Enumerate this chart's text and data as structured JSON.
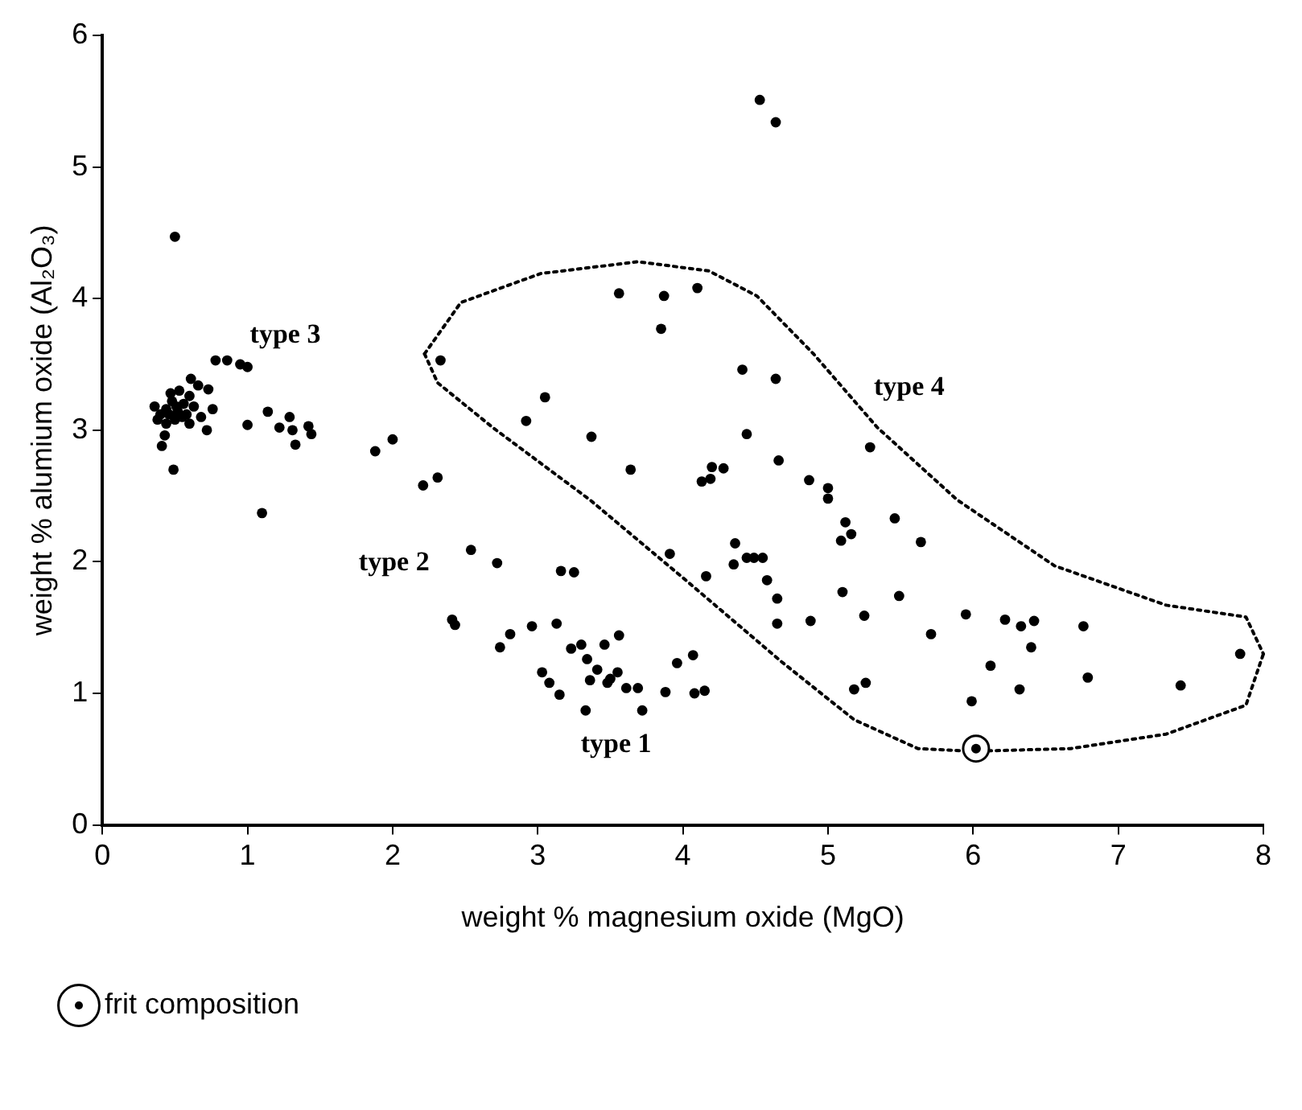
{
  "chart_data": {
    "type": "scatter",
    "xlabel": "weight % magnesium oxide (MgO)",
    "ylabel": "weight % alumium oxide (Al₂O₃)",
    "xlim": [
      0,
      8
    ],
    "xticks": [
      0,
      1,
      2,
      3,
      4,
      5,
      6,
      7,
      8
    ],
    "ylim": [
      0,
      6
    ],
    "yticks": [
      0,
      1,
      2,
      3,
      4,
      5,
      6
    ],
    "legend": "bottom left",
    "marker": "circle",
    "annotations": [
      "type 3",
      "type 2",
      "type 1",
      "type 4"
    ],
    "series": [
      {
        "color": "#000000",
        "x": [
          0.5,
          0.36,
          0.4,
          0.44,
          0.48,
          0.52,
          0.56,
          0.6,
          0.66,
          0.61,
          0.73,
          0.76,
          0.6,
          0.72,
          0.68,
          0.41,
          0.43,
          0.44,
          0.5,
          0.55,
          0.47,
          0.53,
          0.58,
          0.38,
          0.46,
          0.51,
          0.63,
          0.49,
          0.78,
          0.86,
          0.95,
          1.0,
          1.0,
          1.14,
          1.29,
          1.22,
          1.31,
          1.42,
          1.44,
          1.33,
          1.1,
          1.88,
          2.0,
          2.21,
          2.31,
          2.33,
          3.56,
          3.87,
          4.1,
          3.85,
          3.05,
          2.92,
          3.37,
          3.64,
          2.54,
          2.72,
          3.16,
          3.25,
          3.91,
          4.16,
          2.41,
          2.43,
          2.81,
          2.74,
          2.96,
          3.13,
          3.3,
          3.23,
          3.46,
          3.56,
          3.34,
          3.03,
          3.08,
          3.15,
          3.41,
          3.36,
          3.5,
          3.55,
          3.48,
          3.61,
          3.69,
          3.33,
          3.72,
          3.88,
          3.96,
          4.07,
          4.08,
          4.15,
          4.53,
          4.64,
          4.41,
          4.64,
          4.44,
          5.29,
          4.66,
          4.13,
          4.19,
          4.2,
          4.28,
          4.87,
          5.0,
          5.0,
          5.46,
          5.12,
          5.16,
          5.09,
          5.64,
          4.36,
          4.35,
          4.44,
          4.49,
          4.55,
          4.58,
          4.65,
          4.65,
          4.88,
          5.1,
          5.25,
          5.49,
          5.71,
          5.95,
          6.22,
          6.33,
          6.42,
          6.4,
          6.76,
          6.12,
          5.18,
          5.26,
          5.99,
          6.32,
          6.79,
          7.43,
          7.84
        ],
        "values": [
          4.47,
          3.18,
          3.12,
          3.16,
          3.22,
          3.14,
          3.2,
          3.26,
          3.34,
          3.39,
          3.31,
          3.16,
          3.05,
          3.0,
          3.1,
          2.88,
          2.96,
          3.05,
          3.08,
          3.1,
          3.28,
          3.3,
          3.12,
          3.08,
          3.12,
          3.18,
          3.18,
          2.7,
          3.53,
          3.53,
          3.5,
          3.48,
          3.04,
          3.14,
          3.1,
          3.02,
          3.0,
          3.03,
          2.97,
          2.89,
          2.37,
          2.84,
          2.93,
          2.58,
          2.64,
          3.53,
          4.04,
          4.02,
          4.08,
          3.77,
          3.25,
          3.07,
          2.95,
          2.7,
          2.09,
          1.99,
          1.93,
          1.92,
          2.06,
          1.89,
          1.56,
          1.52,
          1.45,
          1.35,
          1.51,
          1.53,
          1.37,
          1.34,
          1.37,
          1.44,
          1.26,
          1.16,
          1.08,
          0.99,
          1.18,
          1.1,
          1.11,
          1.16,
          1.08,
          1.04,
          1.04,
          0.87,
          0.87,
          1.01,
          1.23,
          1.29,
          1.0,
          1.02,
          5.51,
          5.34,
          3.46,
          3.39,
          2.97,
          2.87,
          2.77,
          2.61,
          2.63,
          2.72,
          2.71,
          2.62,
          2.56,
          2.48,
          2.33,
          2.3,
          2.21,
          2.16,
          2.15,
          2.14,
          1.98,
          2.03,
          2.03,
          2.03,
          1.86,
          1.72,
          1.53,
          1.55,
          1.77,
          1.59,
          1.74,
          1.45,
          1.6,
          1.56,
          1.51,
          1.55,
          1.35,
          1.51,
          1.21,
          1.03,
          1.08,
          0.94,
          1.03,
          1.12,
          1.06,
          1.3
        ]
      },
      {
        "name": "frit composition",
        "color": "#000000",
        "x": [
          6.02
        ],
        "values": [
          0.58
        ]
      },
      {
        "type": "line",
        "line_style": "dotted",
        "marker": "none",
        "color": "#000000",
        "x": [
          2.22,
          2.47,
          3.02,
          3.69,
          4.18,
          4.51,
          4.9,
          5.34,
          5.89,
          6.56,
          7.33,
          7.88,
          8.0
        ],
        "values": [
          3.58,
          3.97,
          4.19,
          4.28,
          4.21,
          4.02,
          3.58,
          3.02,
          2.47,
          1.97,
          1.67,
          1.58,
          1.3
        ]
      },
      {
        "type": "line",
        "line_style": "dotted",
        "marker": "none",
        "color": "#000000",
        "x": [
          2.22,
          2.31,
          2.69,
          3.36,
          4.02,
          4.68,
          5.18,
          5.62,
          6.0,
          6.67,
          7.33,
          7.88,
          8.0
        ],
        "values": [
          3.58,
          3.36,
          3.02,
          2.47,
          1.86,
          1.24,
          0.8,
          0.58,
          0.56,
          0.58,
          0.69,
          0.91,
          1.3
        ]
      }
    ]
  }
}
